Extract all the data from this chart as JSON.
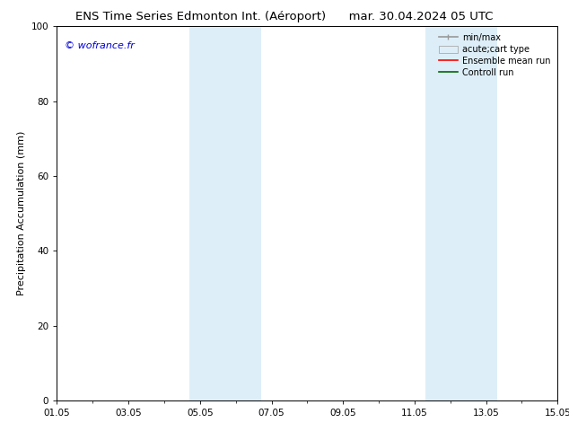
{
  "title_left": "ENS Time Series Edmonton Int. (Aéroport)",
  "title_right": "mar. 30.04.2024 05 UTC",
  "ylabel": "Precipitation Accumulation (mm)",
  "watermark": "© wofrance.fr",
  "watermark_color": "#0000dd",
  "ylim": [
    0,
    100
  ],
  "yticks": [
    0,
    20,
    40,
    60,
    80,
    100
  ],
  "xlim": [
    0,
    14
  ],
  "xtick_positions": [
    0,
    2,
    4,
    6,
    8,
    10,
    12,
    14
  ],
  "xtick_labels": [
    "01.05",
    "03.05",
    "05.05",
    "07.05",
    "09.05",
    "11.05",
    "13.05",
    "15.05"
  ],
  "shaded_bands": [
    {
      "start": 3.7,
      "end": 5.7,
      "color": "#ddeef8"
    },
    {
      "start": 10.3,
      "end": 12.3,
      "color": "#ddeef8"
    }
  ],
  "legend_entries": [
    {
      "label": "min/max",
      "color": "#999999",
      "lw": 1.2,
      "style": "line_caps"
    },
    {
      "label": "acute;cart type",
      "color": "#ddeef8",
      "edge": "#aaaaaa",
      "style": "rect"
    },
    {
      "label": "Ensemble mean run",
      "color": "#ff0000",
      "lw": 1.2,
      "style": "line"
    },
    {
      "label": "Controll run",
      "color": "#006600",
      "lw": 1.2,
      "style": "line"
    }
  ],
  "bg_color": "#ffffff",
  "title_fontsize": 9.5,
  "ylabel_fontsize": 8,
  "tick_fontsize": 7.5,
  "legend_fontsize": 7,
  "watermark_fontsize": 8
}
